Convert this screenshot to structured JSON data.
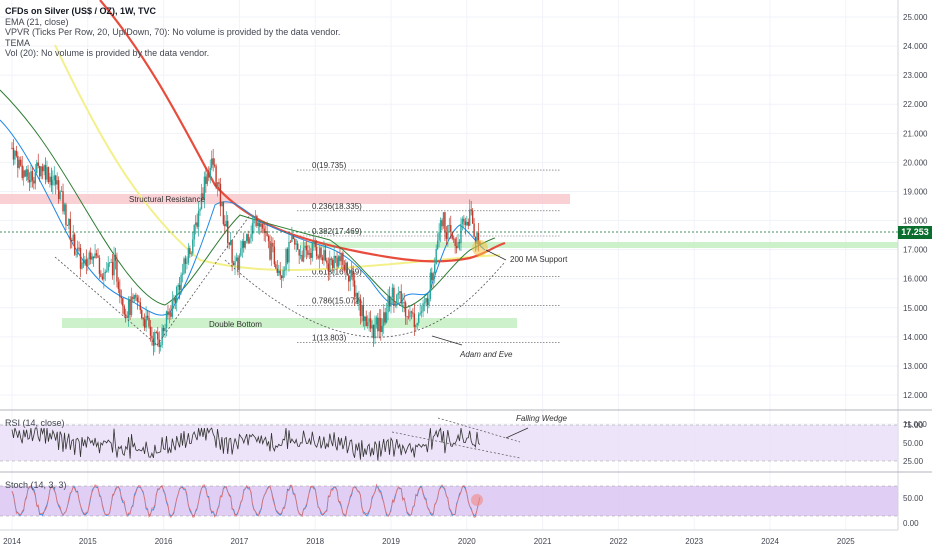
{
  "legend": {
    "title": "CFDs on Silver (US$ / OZ), 1W, TVC",
    "lines": [
      "EMA (21, close)",
      "VPVR (Ticks Per Row, 20, Up/Down, 70): No volume is provided by the data vendor.",
      "TEMA",
      "Vol (20): No volume is provided by the data vendor."
    ]
  },
  "colors": {
    "up": "#26a69a",
    "down": "#c0392b",
    "ema": "#e74c3c",
    "tema": "#1e88e5",
    "ma_green": "#2e7d32",
    "ma_yellow": "#f3f08a",
    "rsi_band": "#e9ddf7",
    "stoch_band": "#dcc6f2",
    "resistance": "#f8c8cc",
    "support": "#c8f0c4",
    "price_tag": "#0b6e2e"
  },
  "current_price": "17.253",
  "rsi_label": "RSI (14, close)",
  "stoch_label": "Stoch (14, 3, 3)",
  "chart_data": {
    "type": "line",
    "x_axis": [
      "2014",
      "2015",
      "2016",
      "2017",
      "2018",
      "2019",
      "2020",
      "2021",
      "2022",
      "2023",
      "2024",
      "2025"
    ],
    "y_ticks": [
      "25.000",
      "24.000",
      "23.000",
      "22.000",
      "21.000",
      "20.000",
      "19.000",
      "18.000",
      "17.000",
      "16.000",
      "15.000",
      "14.000",
      "13.000",
      "12.000",
      "11.000"
    ],
    "ylim": [
      11,
      25.4
    ],
    "rsi_ticks": [
      "75.00",
      "50.00",
      "25.00"
    ],
    "stoch_ticks": [
      "50.00",
      "0.00"
    ],
    "fib_levels": [
      {
        "label": "0(19.735)",
        "value": 19.735
      },
      {
        "label": "0.236(18.335)",
        "value": 18.335
      },
      {
        "label": "0.382(17.469)",
        "value": 17.469
      },
      {
        "label": "0.618(16.069)",
        "value": 16.069
      },
      {
        "label": "0.786(15.072)",
        "value": 15.072
      },
      {
        "label": "1(13.803)",
        "value": 13.803
      }
    ],
    "annotations": [
      "Structural Resistance",
      "Double Bottom",
      "200 MA Support",
      "Adam and Eve",
      "Falling Wedge"
    ],
    "close_path": [
      [
        2014.0,
        20.5
      ],
      [
        2014.2,
        19.4
      ],
      [
        2014.4,
        19.9
      ],
      [
        2014.6,
        19.2
      ],
      [
        2014.8,
        17.3
      ],
      [
        2014.95,
        16.3
      ],
      [
        2015.05,
        17.1
      ],
      [
        2015.2,
        16.2
      ],
      [
        2015.35,
        16.5
      ],
      [
        2015.5,
        14.9
      ],
      [
        2015.65,
        15.2
      ],
      [
        2015.85,
        14.0
      ],
      [
        2015.95,
        13.9
      ],
      [
        2016.1,
        15.0
      ],
      [
        2016.25,
        16.2
      ],
      [
        2016.4,
        17.5
      ],
      [
        2016.55,
        19.5
      ],
      [
        2016.65,
        20.0
      ],
      [
        2016.8,
        18.0
      ],
      [
        2016.95,
        16.3
      ],
      [
        2017.1,
        17.5
      ],
      [
        2017.25,
        18.2
      ],
      [
        2017.4,
        17.0
      ],
      [
        2017.55,
        16.3
      ],
      [
        2017.7,
        17.2
      ],
      [
        2017.85,
        16.8
      ],
      [
        2018.0,
        17.1
      ],
      [
        2018.15,
        16.5
      ],
      [
        2018.3,
        16.7
      ],
      [
        2018.45,
        16.2
      ],
      [
        2018.6,
        15.0
      ],
      [
        2018.75,
        14.2
      ],
      [
        2018.9,
        14.5
      ],
      [
        2019.0,
        15.5
      ],
      [
        2019.15,
        15.2
      ],
      [
        2019.3,
        14.6
      ],
      [
        2019.45,
        15.0
      ],
      [
        2019.55,
        16.3
      ],
      [
        2019.65,
        18.2
      ],
      [
        2019.75,
        17.6
      ],
      [
        2019.85,
        17.1
      ],
      [
        2019.95,
        17.8
      ],
      [
        2020.05,
        18.2
      ],
      [
        2020.12,
        17.4
      ],
      [
        2020.18,
        17.25
      ]
    ]
  }
}
